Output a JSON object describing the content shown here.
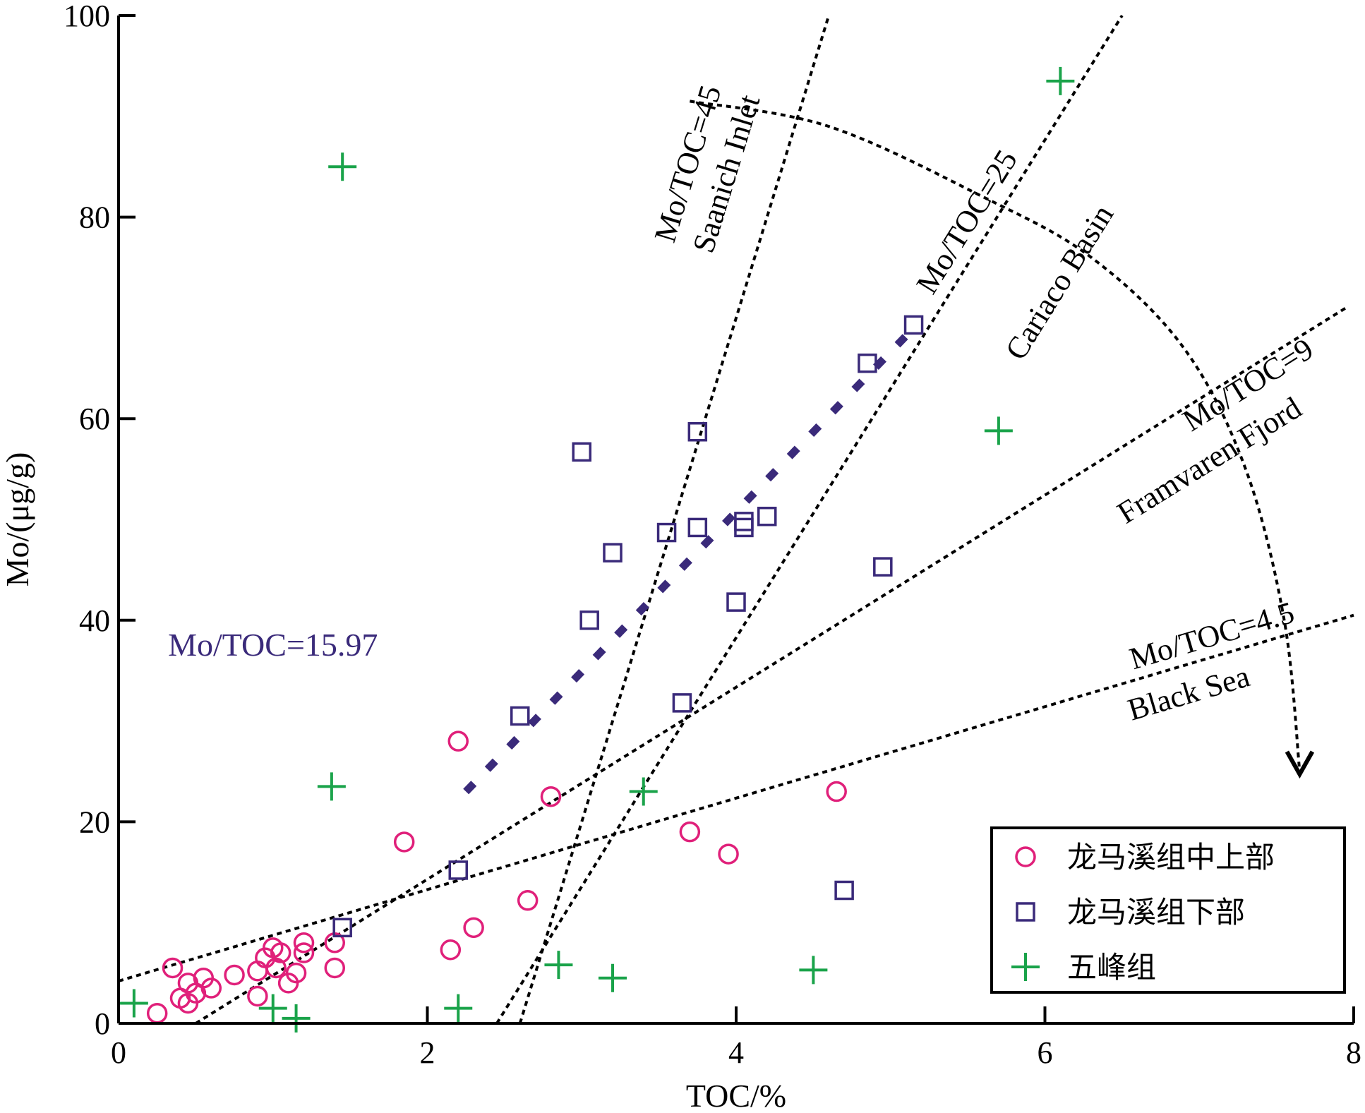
{
  "chart_data": {
    "type": "scatter",
    "xlabel": "TOC/%",
    "ylabel": "Mo/(μg/g)",
    "xlim": [
      0,
      8
    ],
    "ylim": [
      0,
      100
    ],
    "x_ticks": [
      "0",
      "2",
      "4",
      "6",
      "8"
    ],
    "y_ticks": [
      "0",
      "20",
      "40",
      "60",
      "80",
      "100"
    ],
    "legend_position": "bottom-right",
    "series": [
      {
        "name": "龙马溪组中上部",
        "marker": "circle",
        "color": "#e0207a",
        "points": [
          [
            0.25,
            1
          ],
          [
            0.35,
            5.5
          ],
          [
            0.4,
            2.5
          ],
          [
            0.45,
            2
          ],
          [
            0.45,
            4
          ],
          [
            0.5,
            3
          ],
          [
            0.55,
            4.5
          ],
          [
            0.6,
            3.5
          ],
          [
            0.75,
            4.8
          ],
          [
            0.9,
            5.2
          ],
          [
            0.9,
            2.7
          ],
          [
            0.95,
            6.5
          ],
          [
            1.0,
            7.5
          ],
          [
            1.02,
            5.5
          ],
          [
            1.05,
            7
          ],
          [
            1.1,
            4
          ],
          [
            1.15,
            5
          ],
          [
            1.2,
            8
          ],
          [
            1.2,
            7
          ],
          [
            1.4,
            8
          ],
          [
            1.4,
            5.5
          ],
          [
            1.85,
            18
          ],
          [
            2.15,
            7.3
          ],
          [
            2.2,
            28
          ],
          [
            2.3,
            9.5
          ],
          [
            2.65,
            12.2
          ],
          [
            2.8,
            22.5
          ],
          [
            3.7,
            19
          ],
          [
            3.95,
            16.8
          ],
          [
            4.65,
            23
          ]
        ]
      },
      {
        "name": "龙马溪组下部",
        "marker": "square",
        "color": "#3a2a7a",
        "points": [
          [
            1.45,
            9.5
          ],
          [
            2.2,
            15.2
          ],
          [
            2.6,
            30.5
          ],
          [
            3.0,
            56.7
          ],
          [
            3.05,
            40
          ],
          [
            3.2,
            46.7
          ],
          [
            3.55,
            48.7
          ],
          [
            3.65,
            31.8
          ],
          [
            3.75,
            58.7
          ],
          [
            3.75,
            49.2
          ],
          [
            4.0,
            41.8
          ],
          [
            4.05,
            49.2
          ],
          [
            4.05,
            49.8
          ],
          [
            4.2,
            50.3
          ],
          [
            4.7,
            13.2
          ],
          [
            4.85,
            65.5
          ],
          [
            4.95,
            45.3
          ],
          [
            5.15,
            69.3
          ]
        ]
      },
      {
        "name": "五峰组",
        "marker": "plus",
        "color": "#1aa34a",
        "points": [
          [
            0.1,
            2
          ],
          [
            1.0,
            1.5
          ],
          [
            1.15,
            0.5
          ],
          [
            1.38,
            23.5
          ],
          [
            1.45,
            85
          ],
          [
            2.2,
            1.5
          ],
          [
            2.85,
            5.8
          ],
          [
            3.2,
            4.5
          ],
          [
            3.4,
            23
          ],
          [
            4.5,
            5.3
          ],
          [
            5.7,
            58.8
          ],
          [
            6.1,
            93.5
          ]
        ]
      }
    ],
    "fit_line": {
      "label": "Mo/TOC=15.97",
      "color": "#3a2a7a",
      "points": [
        [
          2.25,
          23
        ],
        [
          5.15,
          69
        ]
      ]
    },
    "reference_lines": [
      {
        "label": "Mo/TOC=45",
        "site": "Saanich Inlet",
        "points": [
          [
            2.6,
            0
          ],
          [
            4.6,
            100
          ]
        ]
      },
      {
        "label": "Mo/TOC=25",
        "site": "Cariaco Basin",
        "points": [
          [
            2.45,
            0
          ],
          [
            6.5,
            100
          ]
        ]
      },
      {
        "label": "Mo/TOC=9",
        "site": "Framvaren Fjord",
        "points": [
          [
            0.5,
            0
          ],
          [
            7.95,
            71
          ]
        ]
      },
      {
        "label": "Mo/TOC=4.5",
        "site": "Black Sea",
        "points": [
          [
            0,
            4.2
          ],
          [
            8,
            40.5
          ]
        ]
      }
    ],
    "trend_arrow": {
      "points": [
        [
          3.7,
          91.5
        ],
        [
          4.6,
          89
        ],
        [
          5.6,
          82
        ],
        [
          6.3,
          76
        ],
        [
          6.9,
          67
        ],
        [
          7.3,
          55
        ],
        [
          7.55,
          40
        ],
        [
          7.65,
          25
        ]
      ]
    }
  }
}
